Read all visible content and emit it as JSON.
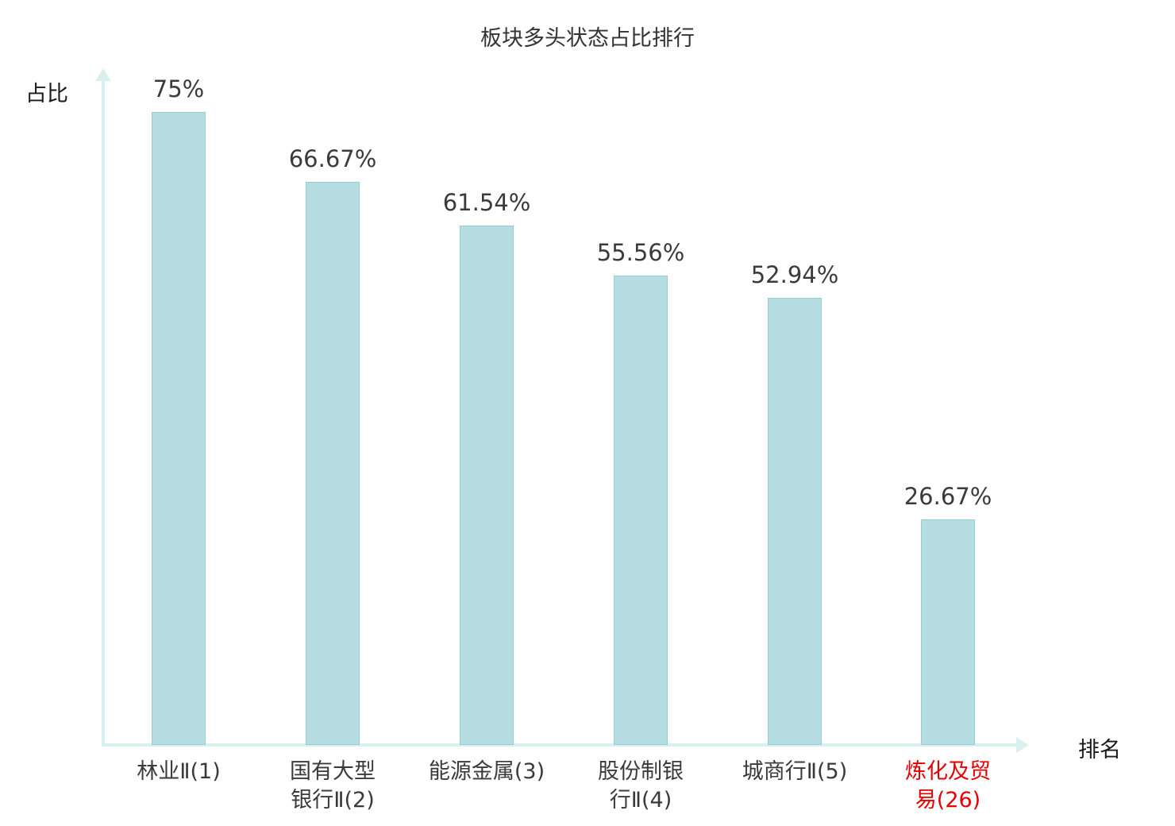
{
  "chart_data": {
    "type": "bar",
    "title": "板块多头状态占比排行",
    "xlabel": "排名",
    "ylabel": "占比",
    "categories": [
      "林业Ⅱ(1)",
      "国有大型\n银行Ⅱ(2)",
      "能源金属(3)",
      "股份制银\n行Ⅱ(4)",
      "城商行Ⅱ(5)",
      "炼化及贸\n易(26)"
    ],
    "values": [
      75,
      66.67,
      61.54,
      55.56,
      52.94,
      26.67
    ],
    "value_labels": [
      "75%",
      "66.67%",
      "61.54%",
      "55.56%",
      "52.94%",
      "26.67%"
    ],
    "highlight_index": 5,
    "highlight_color": "#e60000",
    "bar_color": "#b6dde2",
    "bar_border_color": "#96ccd2",
    "axis_color": "#d9f0f1",
    "text_color": "#3a3a3a",
    "ylim": [
      0,
      80
    ],
    "grid": false,
    "legend": "none"
  }
}
